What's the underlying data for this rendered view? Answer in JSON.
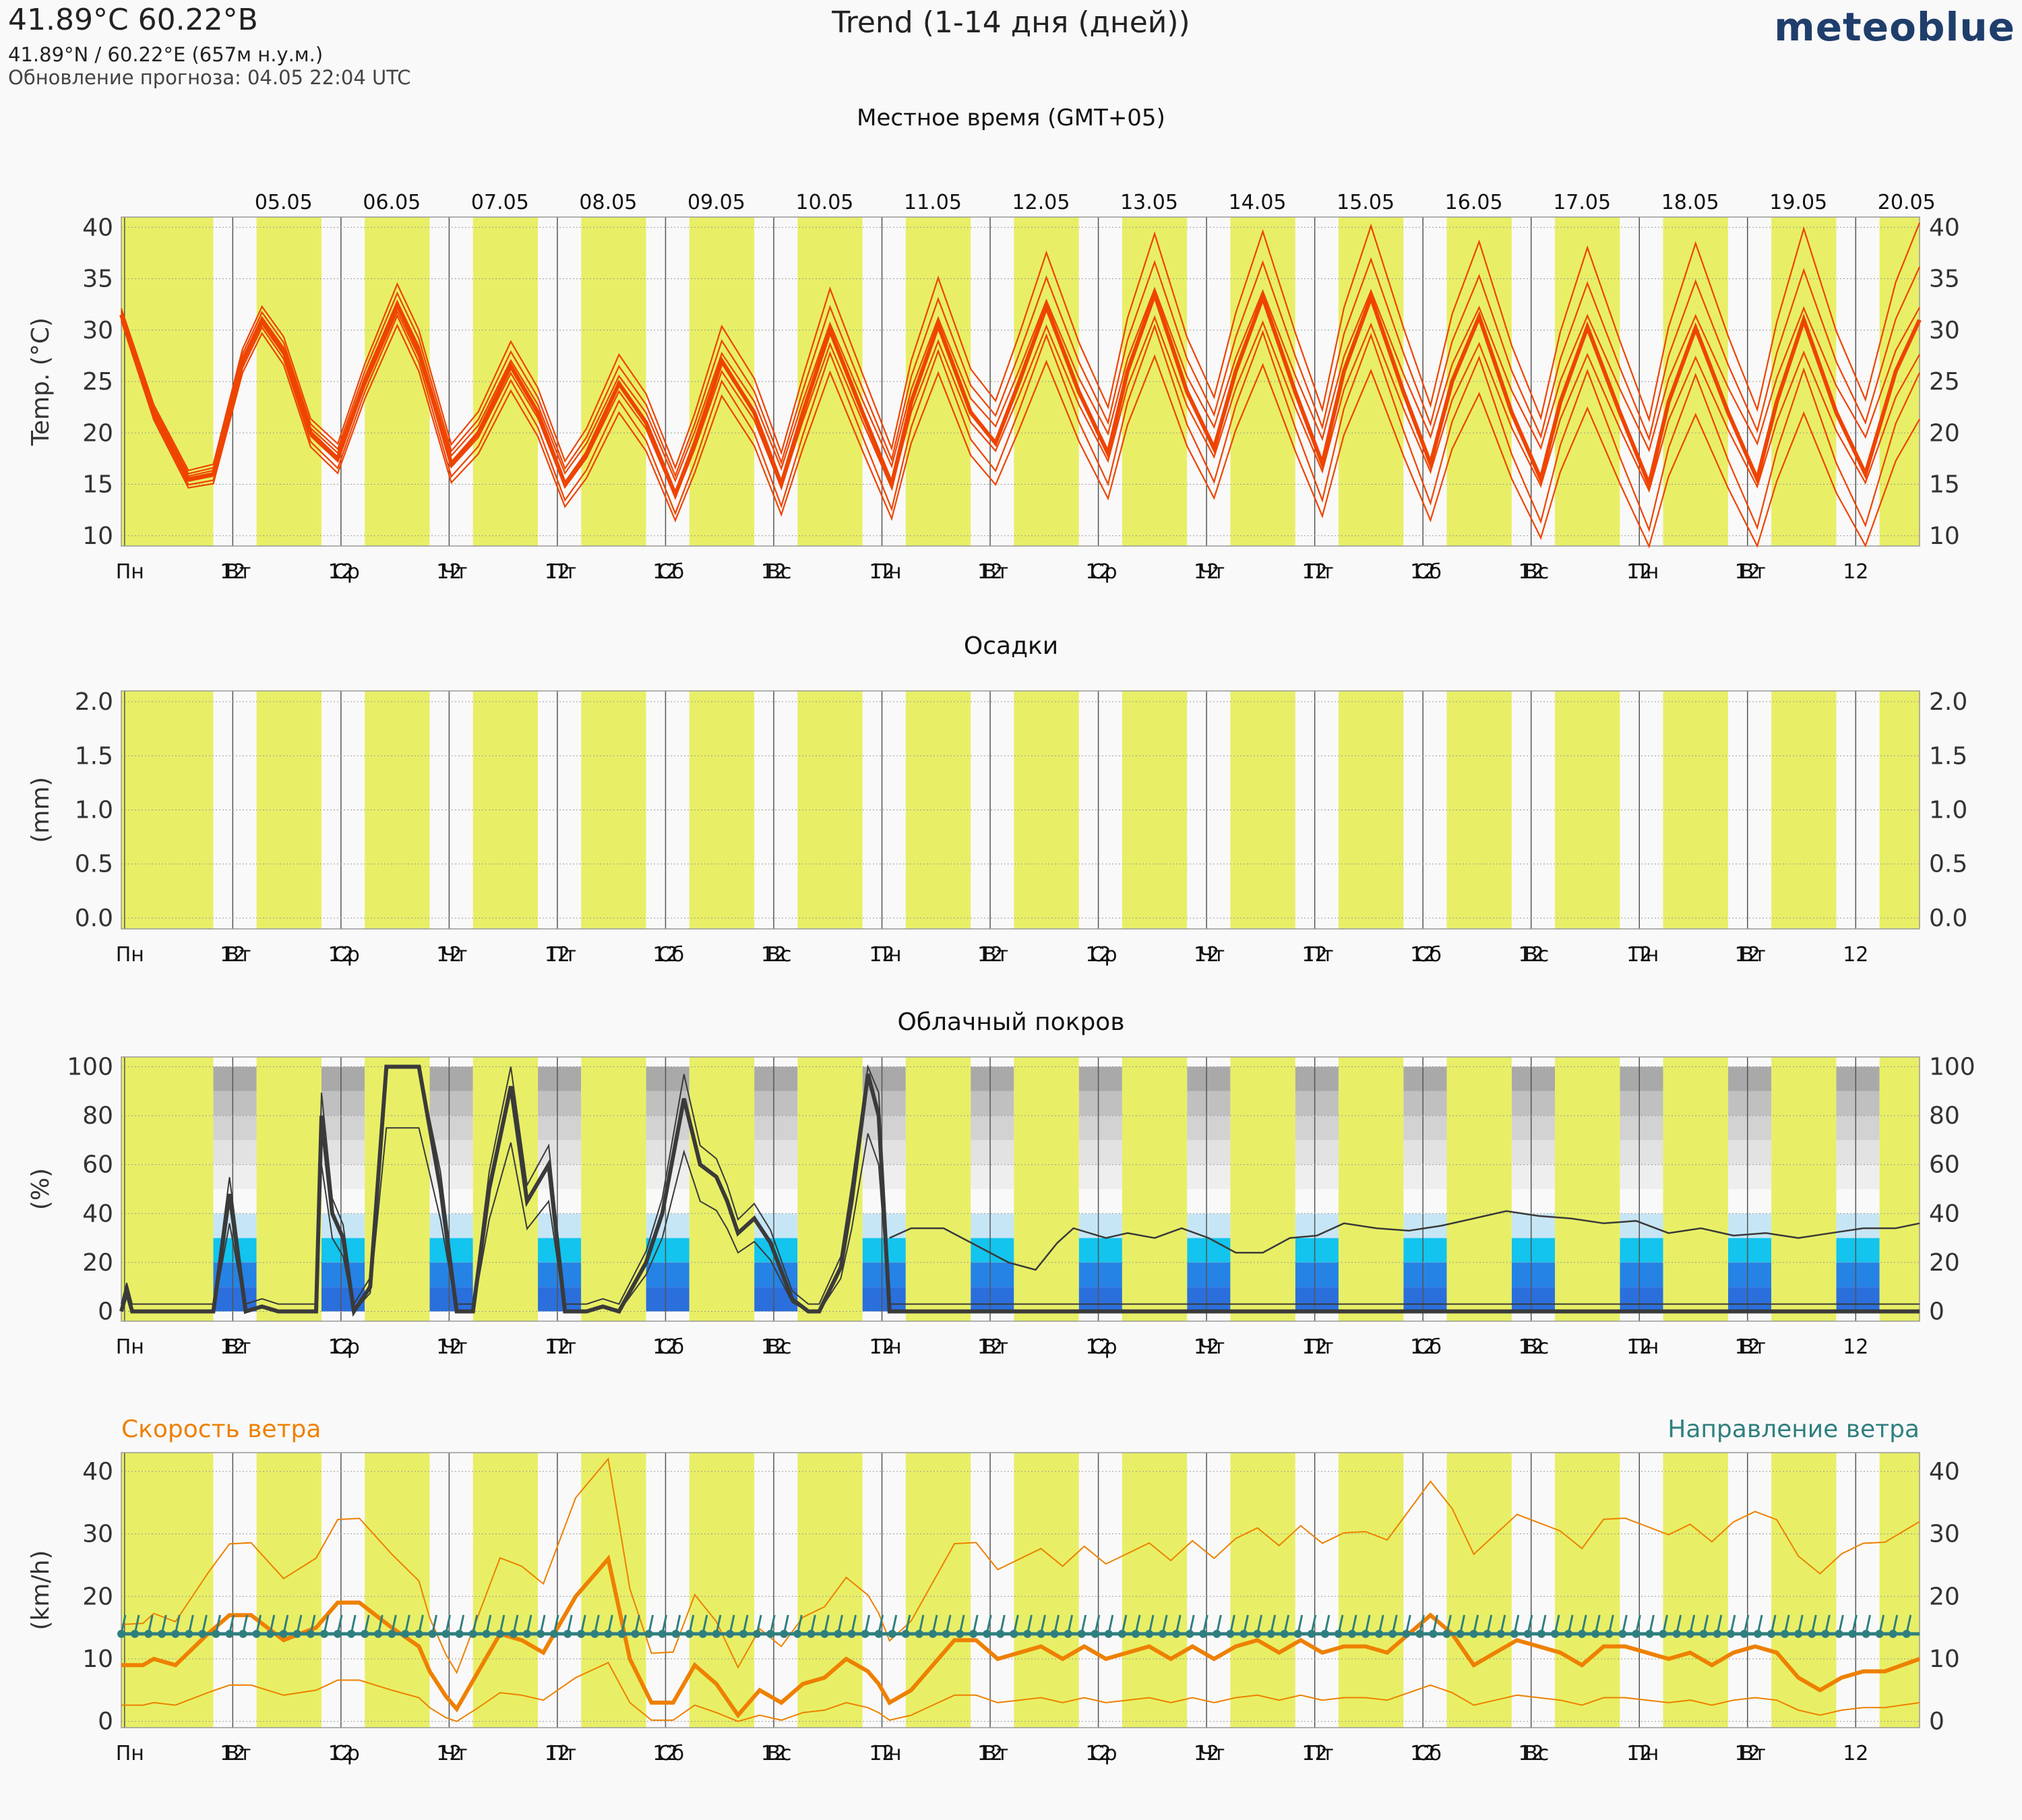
{
  "header": {
    "coord_title": "41.89°C 60.22°В",
    "coord_sub": "41.89°N / 60.22°E (657м н.у.м.)",
    "update": "Обновление прогноза: 04.05 22:04 UTC",
    "title": "Trend (1-14 дня (дней))",
    "logo": "meteoblue",
    "local_time": "Местное время (GMT+05)"
  },
  "colors": {
    "day_band": "#e8ef66",
    "temp": "#ee4400",
    "precip": "#2277cc",
    "cloud_line": "#3a3a3a",
    "wind_speed": "#ee8000",
    "wind_dir": "#2f7f7f"
  },
  "dates": [
    "05.05",
    "06.05",
    "07.05",
    "08.05",
    "09.05",
    "10.05",
    "11.05",
    "12.05",
    "13.05",
    "14.05",
    "15.05",
    "16.05",
    "17.05",
    "18.05",
    "19.05",
    "20.05"
  ],
  "weekdays": [
    "Пн",
    "Вт",
    "Ср",
    "Чт",
    "Пт",
    "Сб",
    "Вс",
    "Пн",
    "Вт",
    "Ср",
    "Чт",
    "Пт",
    "Сб",
    "Вс",
    "Пн",
    "Вт"
  ],
  "noon_label": "12",
  "chart_data": [
    {
      "type": "line",
      "title": "",
      "ylabel": "Temp. (°C)",
      "ylim": [
        9,
        41
      ],
      "yticks": [
        10,
        15,
        20,
        25,
        30,
        35,
        40
      ],
      "x_unit": "days from 04.05 00:00 local time",
      "series": [
        {
          "values": [
            [
              0.0,
              31.5
            ],
            [
              0.3,
              22
            ],
            [
              0.62,
              15.5
            ],
            [
              0.85,
              16
            ],
            [
              1.12,
              27
            ],
            [
              1.3,
              31
            ],
            [
              1.5,
              28
            ],
            [
              1.75,
              20
            ],
            [
              2.0,
              17.5
            ],
            [
              2.25,
              25
            ],
            [
              2.55,
              32.5
            ],
            [
              2.75,
              28
            ],
            [
              3.05,
              17
            ],
            [
              3.3,
              20
            ],
            [
              3.6,
              26.5
            ],
            [
              3.85,
              22
            ],
            [
              4.1,
              15
            ],
            [
              4.3,
              18
            ],
            [
              4.6,
              24.8
            ],
            [
              4.85,
              21
            ],
            [
              5.12,
              14
            ],
            [
              5.3,
              19
            ],
            [
              5.55,
              27
            ],
            [
              5.85,
              22
            ],
            [
              6.1,
              15
            ],
            [
              6.3,
              22
            ],
            [
              6.55,
              30
            ],
            [
              6.85,
              22
            ],
            [
              7.12,
              15
            ],
            [
              7.3,
              23
            ],
            [
              7.55,
              30.5
            ],
            [
              7.85,
              22
            ],
            [
              8.08,
              19
            ],
            [
              8.3,
              25
            ],
            [
              8.55,
              32.3
            ],
            [
              8.85,
              24
            ],
            [
              9.12,
              18
            ],
            [
              9.3,
              26
            ],
            [
              9.55,
              33.5
            ],
            [
              9.85,
              24
            ],
            [
              10.1,
              18.5
            ],
            [
              10.3,
              26
            ],
            [
              10.55,
              33.2
            ],
            [
              10.85,
              24
            ],
            [
              11.1,
              17
            ],
            [
              11.3,
              26
            ],
            [
              11.55,
              33.2
            ],
            [
              11.85,
              24
            ],
            [
              12.1,
              17
            ],
            [
              12.3,
              25
            ],
            [
              12.55,
              31.3
            ],
            [
              12.85,
              22
            ],
            [
              13.12,
              15.5
            ],
            [
              13.3,
              23
            ],
            [
              13.55,
              30.3
            ],
            [
              13.85,
              22
            ],
            [
              14.12,
              15
            ],
            [
              14.3,
              23
            ],
            [
              14.55,
              30.2
            ],
            [
              14.85,
              22
            ],
            [
              15.12,
              15.5
            ],
            [
              15.3,
              23
            ],
            [
              15.55,
              31
            ],
            [
              15.85,
              22
            ],
            [
              16.12,
              16
            ],
            [
              16.4,
              26
            ],
            [
              16.62,
              31
            ]
          ]
        }
      ]
    },
    {
      "type": "area",
      "title": "Осадки",
      "ylabel": "(mm)",
      "ylim": [
        -0.1,
        2.1
      ],
      "yticks": [
        0.0,
        0.5,
        1.0,
        1.5,
        2.0
      ],
      "series": [
        {
          "values": []
        }
      ]
    },
    {
      "type": "line",
      "title": "Облачный покров",
      "ylabel": "(%)",
      "ylim": [
        -4,
        104
      ],
      "yticks": [
        0,
        20,
        40,
        60,
        80,
        100
      ],
      "series": [
        {
          "values": [
            [
              0.0,
              0
            ],
            [
              0.05,
              8
            ],
            [
              0.1,
              0
            ],
            [
              0.85,
              0
            ],
            [
              1.0,
              48
            ],
            [
              1.15,
              0
            ],
            [
              1.3,
              2
            ],
            [
              1.45,
              0
            ],
            [
              1.8,
              0
            ],
            [
              1.85,
              80
            ],
            [
              1.95,
              40
            ],
            [
              2.05,
              30
            ],
            [
              2.15,
              0
            ],
            [
              2.3,
              10
            ],
            [
              2.45,
              100
            ],
            [
              2.75,
              100
            ],
            [
              2.95,
              50
            ],
            [
              3.1,
              0
            ],
            [
              3.25,
              0
            ],
            [
              3.4,
              50
            ],
            [
              3.6,
              92
            ],
            [
              3.75,
              45
            ],
            [
              3.95,
              60
            ],
            [
              4.1,
              0
            ],
            [
              4.3,
              0
            ],
            [
              4.45,
              2
            ],
            [
              4.6,
              0
            ],
            [
              4.85,
              20
            ],
            [
              5.0,
              40
            ],
            [
              5.2,
              87
            ],
            [
              5.35,
              60
            ],
            [
              5.5,
              55
            ],
            [
              5.6,
              45
            ],
            [
              5.7,
              32
            ],
            [
              5.85,
              38
            ],
            [
              6.0,
              28
            ],
            [
              6.2,
              5
            ],
            [
              6.35,
              0
            ],
            [
              6.45,
              0
            ],
            [
              6.65,
              18
            ],
            [
              6.75,
              45
            ],
            [
              6.9,
              97
            ],
            [
              7.0,
              80
            ],
            [
              7.1,
              0
            ],
            [
              16.62,
              0
            ]
          ]
        },
        {
          "values": [
            [
              7.1,
              30
            ],
            [
              7.3,
              34
            ],
            [
              7.6,
              34
            ],
            [
              7.9,
              27
            ],
            [
              8.2,
              20
            ],
            [
              8.45,
              17
            ],
            [
              8.65,
              28
            ],
            [
              8.8,
              34
            ],
            [
              9.1,
              30
            ],
            [
              9.3,
              32
            ],
            [
              9.55,
              30
            ],
            [
              9.8,
              34
            ],
            [
              10.05,
              30
            ],
            [
              10.3,
              24
            ],
            [
              10.55,
              24
            ],
            [
              10.8,
              30
            ],
            [
              11.05,
              31
            ],
            [
              11.3,
              36
            ],
            [
              11.6,
              34
            ],
            [
              11.9,
              33
            ],
            [
              12.2,
              35
            ],
            [
              12.5,
              38
            ],
            [
              12.8,
              41
            ],
            [
              13.1,
              39
            ],
            [
              13.4,
              38
            ],
            [
              13.7,
              36
            ],
            [
              14.0,
              37
            ],
            [
              14.3,
              32
            ],
            [
              14.6,
              34
            ],
            [
              14.9,
              31
            ],
            [
              15.2,
              32
            ],
            [
              15.5,
              30
            ],
            [
              15.8,
              32
            ],
            [
              16.1,
              34
            ],
            [
              16.4,
              34
            ],
            [
              16.62,
              36
            ]
          ]
        }
      ]
    },
    {
      "type": "line",
      "title": "",
      "legend": {
        "left": "Скорость ветра",
        "right": "Направление ветра"
      },
      "ylabel": "(km/h)",
      "ylim": [
        -1,
        43
      ],
      "yticks": [
        0,
        10,
        20,
        30,
        40
      ],
      "series": [
        {
          "values": [
            [
              0.0,
              9
            ],
            [
              0.2,
              9
            ],
            [
              0.3,
              10
            ],
            [
              0.5,
              9
            ],
            [
              0.8,
              14
            ],
            [
              1.0,
              17
            ],
            [
              1.2,
              17
            ],
            [
              1.5,
              13
            ],
            [
              1.8,
              15
            ],
            [
              2.0,
              19
            ],
            [
              2.2,
              19
            ],
            [
              2.5,
              15
            ],
            [
              2.75,
              12
            ],
            [
              2.85,
              8
            ],
            [
              3.0,
              4
            ],
            [
              3.1,
              2
            ],
            [
              3.3,
              8
            ],
            [
              3.5,
              14
            ],
            [
              3.7,
              13
            ],
            [
              3.9,
              11
            ],
            [
              4.0,
              14
            ],
            [
              4.2,
              20
            ],
            [
              4.5,
              26
            ],
            [
              4.7,
              10
            ],
            [
              4.9,
              3
            ],
            [
              5.1,
              3
            ],
            [
              5.3,
              9
            ],
            [
              5.5,
              6
            ],
            [
              5.7,
              1
            ],
            [
              5.9,
              5
            ],
            [
              6.1,
              3
            ],
            [
              6.3,
              6
            ],
            [
              6.5,
              7
            ],
            [
              6.7,
              10
            ],
            [
              6.9,
              8
            ],
            [
              7.0,
              6
            ],
            [
              7.1,
              3
            ],
            [
              7.3,
              5
            ],
            [
              7.5,
              9
            ],
            [
              7.7,
              13
            ],
            [
              7.9,
              13
            ],
            [
              8.1,
              10
            ],
            [
              8.3,
              11
            ],
            [
              8.5,
              12
            ],
            [
              8.7,
              10
            ],
            [
              8.9,
              12
            ],
            [
              9.1,
              10
            ],
            [
              9.3,
              11
            ],
            [
              9.5,
              12
            ],
            [
              9.7,
              10
            ],
            [
              9.9,
              12
            ],
            [
              10.1,
              10
            ],
            [
              10.3,
              12
            ],
            [
              10.5,
              13
            ],
            [
              10.7,
              11
            ],
            [
              10.9,
              13
            ],
            [
              11.1,
              11
            ],
            [
              11.3,
              12
            ],
            [
              11.5,
              12
            ],
            [
              11.7,
              11
            ],
            [
              11.9,
              14
            ],
            [
              12.1,
              17
            ],
            [
              12.3,
              14
            ],
            [
              12.5,
              9
            ],
            [
              12.7,
              11
            ],
            [
              12.9,
              13
            ],
            [
              13.1,
              12
            ],
            [
              13.3,
              11
            ],
            [
              13.5,
              9
            ],
            [
              13.7,
              12
            ],
            [
              13.9,
              12
            ],
            [
              14.1,
              11
            ],
            [
              14.3,
              10
            ],
            [
              14.5,
              11
            ],
            [
              14.7,
              9
            ],
            [
              14.9,
              11
            ],
            [
              15.1,
              12
            ],
            [
              15.3,
              11
            ],
            [
              15.5,
              7
            ],
            [
              15.7,
              5
            ],
            [
              15.9,
              7
            ],
            [
              16.1,
              8
            ],
            [
              16.3,
              8
            ],
            [
              16.62,
              10
            ]
          ]
        }
      ]
    }
  ]
}
